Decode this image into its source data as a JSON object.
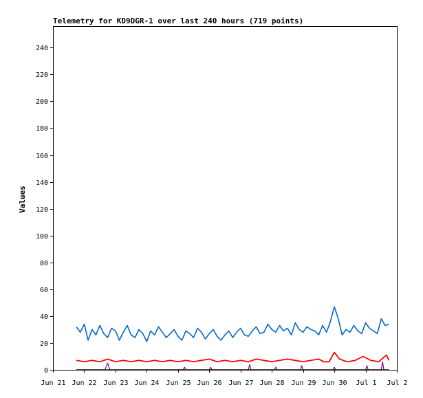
{
  "chart_data": {
    "type": "line",
    "title": "Telemetry for KD9DGR-1 over last 240 hours (719 points)",
    "ylabel": "Values",
    "xlabel": "",
    "ylim": [
      0,
      256
    ],
    "yticks": [
      0,
      20,
      40,
      60,
      80,
      100,
      120,
      140,
      160,
      180,
      200,
      220,
      240
    ],
    "x_tick_labels": [
      "Jun 21",
      "Jun 22",
      "Jun 23",
      "Jun 24",
      "Jun 25",
      "Jun 26",
      "Jun 27",
      "Jun 28",
      "Jun 29",
      "Jun 30",
      "Jul 1",
      "Jul 2"
    ],
    "x_range_hours": [
      0,
      264
    ],
    "grid": false,
    "legend": "none",
    "series": [
      {
        "color": "#0066cc",
        "x": [
          18,
          21,
          24,
          27,
          30,
          33,
          36,
          39,
          42,
          45,
          48,
          51,
          54,
          57,
          60,
          63,
          66,
          69,
          72,
          75,
          78,
          81,
          84,
          87,
          90,
          93,
          96,
          99,
          102,
          105,
          108,
          111,
          114,
          117,
          120,
          123,
          126,
          129,
          132,
          135,
          138,
          141,
          144,
          147,
          150,
          153,
          156,
          159,
          162,
          165,
          168,
          171,
          174,
          177,
          180,
          183,
          186,
          189,
          192,
          195,
          198,
          201,
          204,
          207,
          210,
          213,
          216,
          219,
          222,
          225,
          228,
          231,
          234,
          237,
          240,
          243,
          246,
          249,
          252,
          255,
          258
        ],
        "values": [
          32,
          28,
          34,
          22,
          30,
          26,
          33,
          27,
          24,
          31,
          29,
          22,
          28,
          33,
          26,
          24,
          30,
          27,
          21,
          29,
          26,
          32,
          28,
          24,
          27,
          30,
          25,
          22,
          29,
          27,
          24,
          31,
          28,
          23,
          27,
          30,
          25,
          22,
          26,
          29,
          24,
          28,
          31,
          26,
          25,
          29,
          32,
          27,
          28,
          34,
          30,
          28,
          33,
          29,
          31,
          26,
          35,
          30,
          28,
          32,
          30,
          29,
          26,
          33,
          28,
          36,
          47,
          38,
          26,
          30,
          28,
          33,
          29,
          27,
          35,
          31,
          29,
          27,
          38,
          33,
          34
        ]
      },
      {
        "color": "#ff0000",
        "x": [
          18,
          24,
          30,
          36,
          42,
          48,
          54,
          60,
          66,
          72,
          78,
          84,
          90,
          96,
          102,
          108,
          114,
          120,
          126,
          132,
          138,
          144,
          150,
          156,
          162,
          168,
          174,
          180,
          186,
          192,
          198,
          204,
          208,
          212,
          216,
          220,
          226,
          232,
          238,
          244,
          250,
          256,
          258
        ],
        "values": [
          7,
          6,
          7,
          6,
          8,
          6,
          7,
          6,
          7,
          6,
          7,
          6,
          7,
          6,
          7,
          6,
          7,
          8,
          6,
          7,
          6,
          7,
          6,
          8,
          7,
          6,
          7,
          8,
          7,
          6,
          7,
          8,
          6,
          6,
          13,
          8,
          6,
          7,
          10,
          7,
          6,
          11,
          7
        ]
      },
      {
        "color": "#880088",
        "x": [
          18,
          40,
          41,
          42,
          43,
          44,
          100,
          101,
          102,
          120,
          121,
          122,
          150,
          151,
          152,
          170,
          171,
          172,
          190,
          191,
          192,
          215,
          216,
          217,
          240,
          241,
          242,
          252,
          253,
          254,
          258
        ],
        "values": [
          0,
          0,
          3,
          5,
          2,
          0,
          0,
          2,
          0,
          0,
          2,
          0,
          0,
          4,
          0,
          0,
          2,
          0,
          0,
          3,
          0,
          0,
          2,
          0,
          0,
          3,
          0,
          0,
          6,
          0,
          0
        ]
      },
      {
        "color": "#000000",
        "x": [
          18,
          258
        ],
        "values": [
          0,
          0
        ]
      }
    ]
  }
}
